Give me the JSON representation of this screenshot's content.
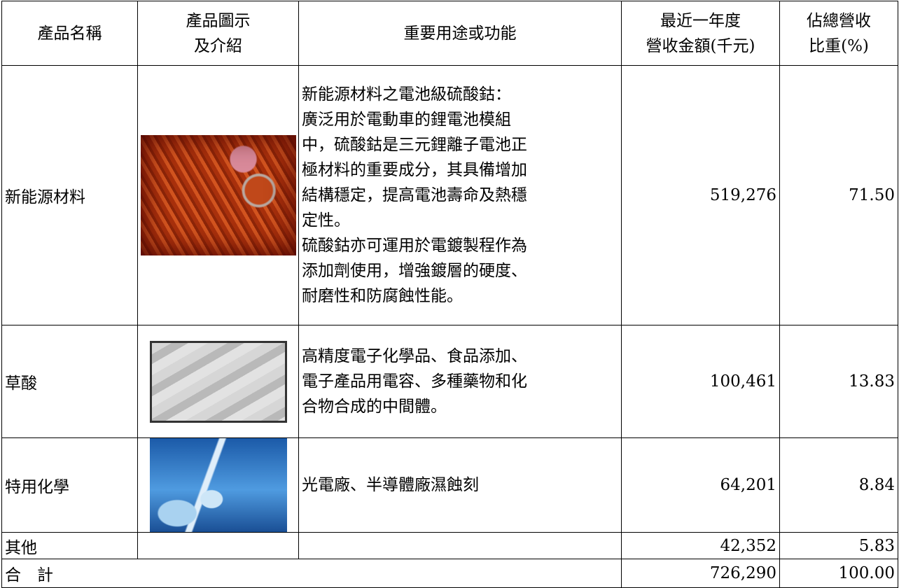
{
  "table": {
    "header": [
      [
        "產品名稱"
      ],
      [
        "產品圖示",
        "及介紹"
      ],
      [
        "重要用途或功能"
      ],
      [
        "最近一年度",
        "營收金額(千元)"
      ],
      [
        "佔總營收",
        "比重(%)"
      ]
    ],
    "rows": [
      {
        "name": "新能源材料",
        "description": [
          "新能源材料之電池級硫酸鈷：",
          "廣泛用於電動車的鋰電池模組",
          "中，硫酸鈷是三元鋰離子電池正",
          "極材料的重要成分，其具備增加",
          "結構穩定，提高電池壽命及熱穩",
          "定性。",
          "硫酸鈷亦可運用於電鍍製程作為",
          "添加劑使用，增強鍍層的硬度、",
          "耐磨性和防腐蝕性能。"
        ],
        "revenue": "519,276",
        "share": "71.50"
      },
      {
        "name": "草酸",
        "description": [
          "高精度電子化學品、食品添加、",
          "電子產品用電容、多種藥物和化",
          "合物合成的中間體。"
        ],
        "revenue": "100,461",
        "share": "13.83"
      },
      {
        "name": "特用化學",
        "description": [
          "光電廠、半導體廠濕蝕刻"
        ],
        "revenue": "64,201",
        "share": "8.84"
      },
      {
        "name": "其他",
        "description": [],
        "revenue": "42,352",
        "share": "5.83"
      }
    ],
    "total": {
      "label": "合　計",
      "revenue": "726,290",
      "share": "100.00"
    }
  }
}
